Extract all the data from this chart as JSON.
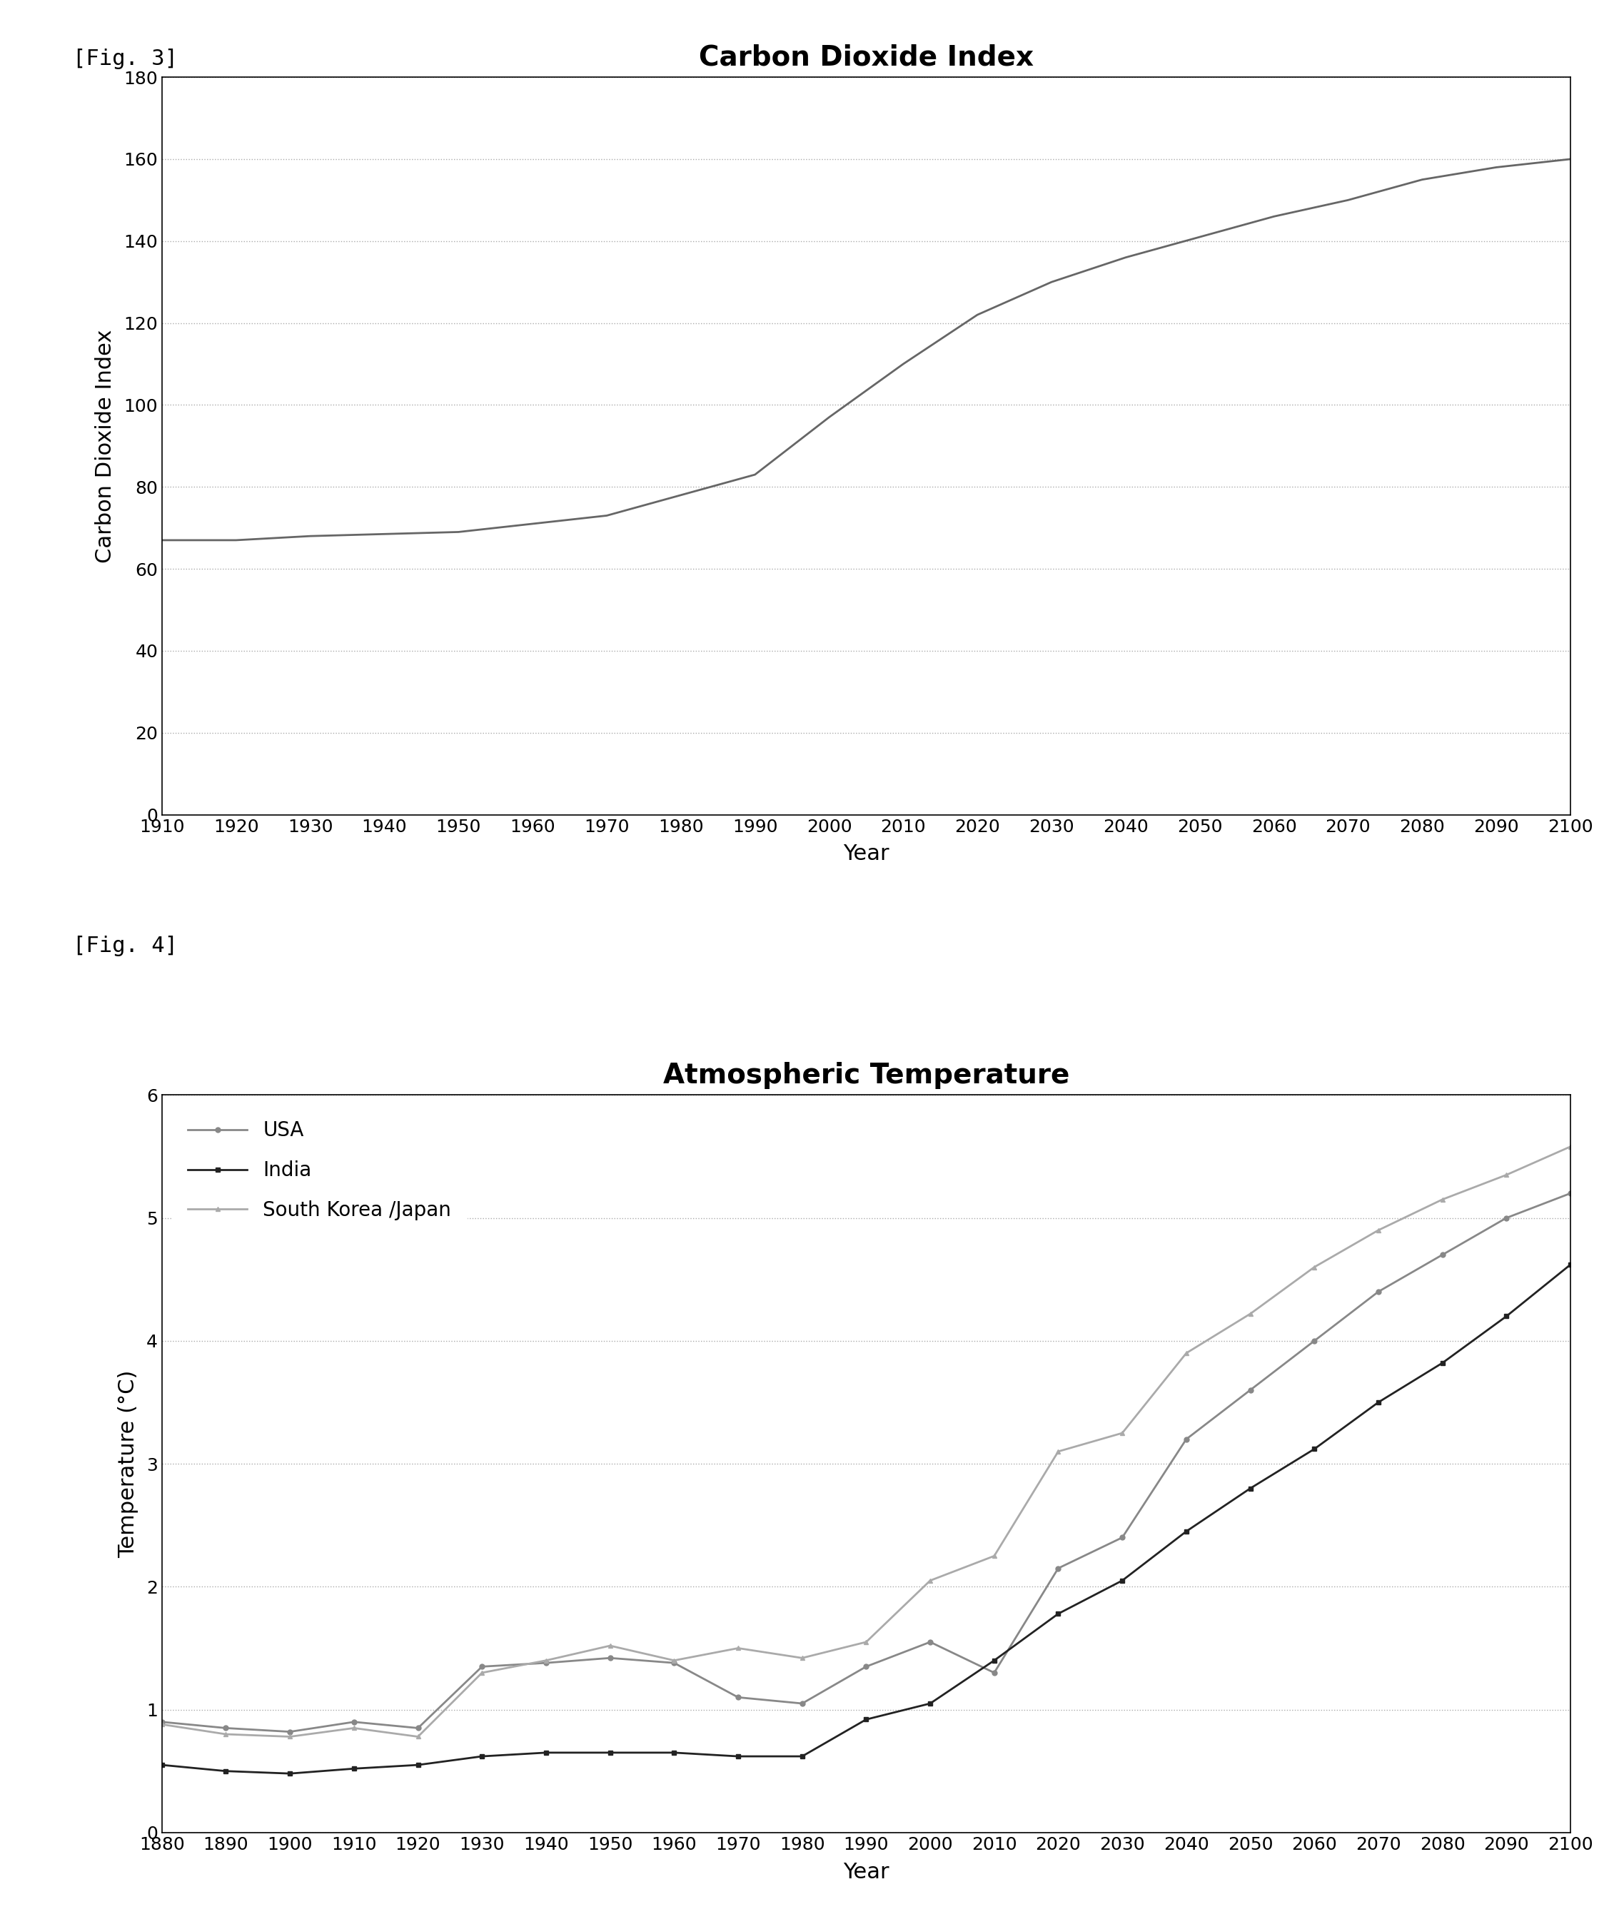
{
  "fig3_label": "[Fig. 3]",
  "fig4_label": "[Fig. 4]",
  "title1": "Carbon Dioxide Index",
  "title2": "Atmospheric Temperature",
  "ylabel1": "Carbon Dioxide Index",
  "ylabel2": "Temperature (°C)",
  "xlabel": "Year",
  "fig3_years": [
    1910,
    1920,
    1930,
    1940,
    1950,
    1960,
    1970,
    1980,
    1990,
    2000,
    2010,
    2020,
    2030,
    2040,
    2050,
    2060,
    2070,
    2080,
    2090,
    2100
  ],
  "fig3_values": [
    67,
    67,
    68,
    68.5,
    69,
    71,
    73,
    78,
    83,
    97,
    110,
    122,
    130,
    136,
    141,
    146,
    150,
    155,
    158,
    160
  ],
  "fig3_xlim": [
    1910,
    2100
  ],
  "fig3_ylim": [
    0,
    180
  ],
  "fig3_yticks": [
    0,
    20,
    40,
    60,
    80,
    100,
    120,
    140,
    160,
    180
  ],
  "fig3_xticks": [
    1910,
    1920,
    1930,
    1940,
    1950,
    1960,
    1970,
    1980,
    1990,
    2000,
    2010,
    2020,
    2030,
    2040,
    2050,
    2060,
    2070,
    2080,
    2090,
    2100
  ],
  "fig4_years": [
    1880,
    1890,
    1900,
    1910,
    1920,
    1930,
    1940,
    1950,
    1960,
    1970,
    1980,
    1990,
    2000,
    2010,
    2020,
    2030,
    2040,
    2050,
    2060,
    2070,
    2080,
    2090,
    2100
  ],
  "usa_values": [
    0.9,
    0.85,
    0.82,
    0.9,
    0.85,
    1.35,
    1.38,
    1.42,
    1.38,
    1.1,
    1.05,
    1.35,
    1.55,
    1.3,
    2.15,
    2.4,
    3.2,
    3.6,
    4.0,
    4.4,
    4.7,
    5.0,
    5.2
  ],
  "india_values": [
    0.55,
    0.5,
    0.48,
    0.52,
    0.55,
    0.62,
    0.65,
    0.65,
    0.65,
    0.62,
    0.62,
    0.92,
    1.05,
    1.4,
    1.78,
    2.05,
    2.45,
    2.8,
    3.12,
    3.5,
    3.82,
    4.2,
    4.62
  ],
  "sk_values": [
    0.88,
    0.8,
    0.78,
    0.85,
    0.78,
    1.3,
    1.4,
    1.52,
    1.4,
    1.5,
    1.42,
    1.55,
    2.05,
    2.25,
    3.1,
    3.25,
    3.9,
    4.22,
    4.6,
    4.9,
    5.15,
    5.35,
    5.58
  ],
  "fig4_xlim": [
    1880,
    2100
  ],
  "fig4_ylim": [
    0,
    6
  ],
  "fig4_yticks": [
    0,
    1,
    2,
    3,
    4,
    5,
    6
  ],
  "fig4_xticks": [
    1880,
    1890,
    1900,
    1910,
    1920,
    1930,
    1940,
    1950,
    1960,
    1970,
    1980,
    1990,
    2000,
    2010,
    2020,
    2030,
    2040,
    2050,
    2060,
    2070,
    2080,
    2090,
    2100
  ],
  "line_color1": "#666666",
  "line_color_usa": "#888888",
  "line_color_india": "#222222",
  "line_color_sk": "#aaaaaa",
  "background_color": "#ffffff",
  "grid_color": "#aaaaaa",
  "title_fontsize": 28,
  "label_fontsize": 22,
  "tick_fontsize": 18,
  "fig_label_fontsize": 22
}
